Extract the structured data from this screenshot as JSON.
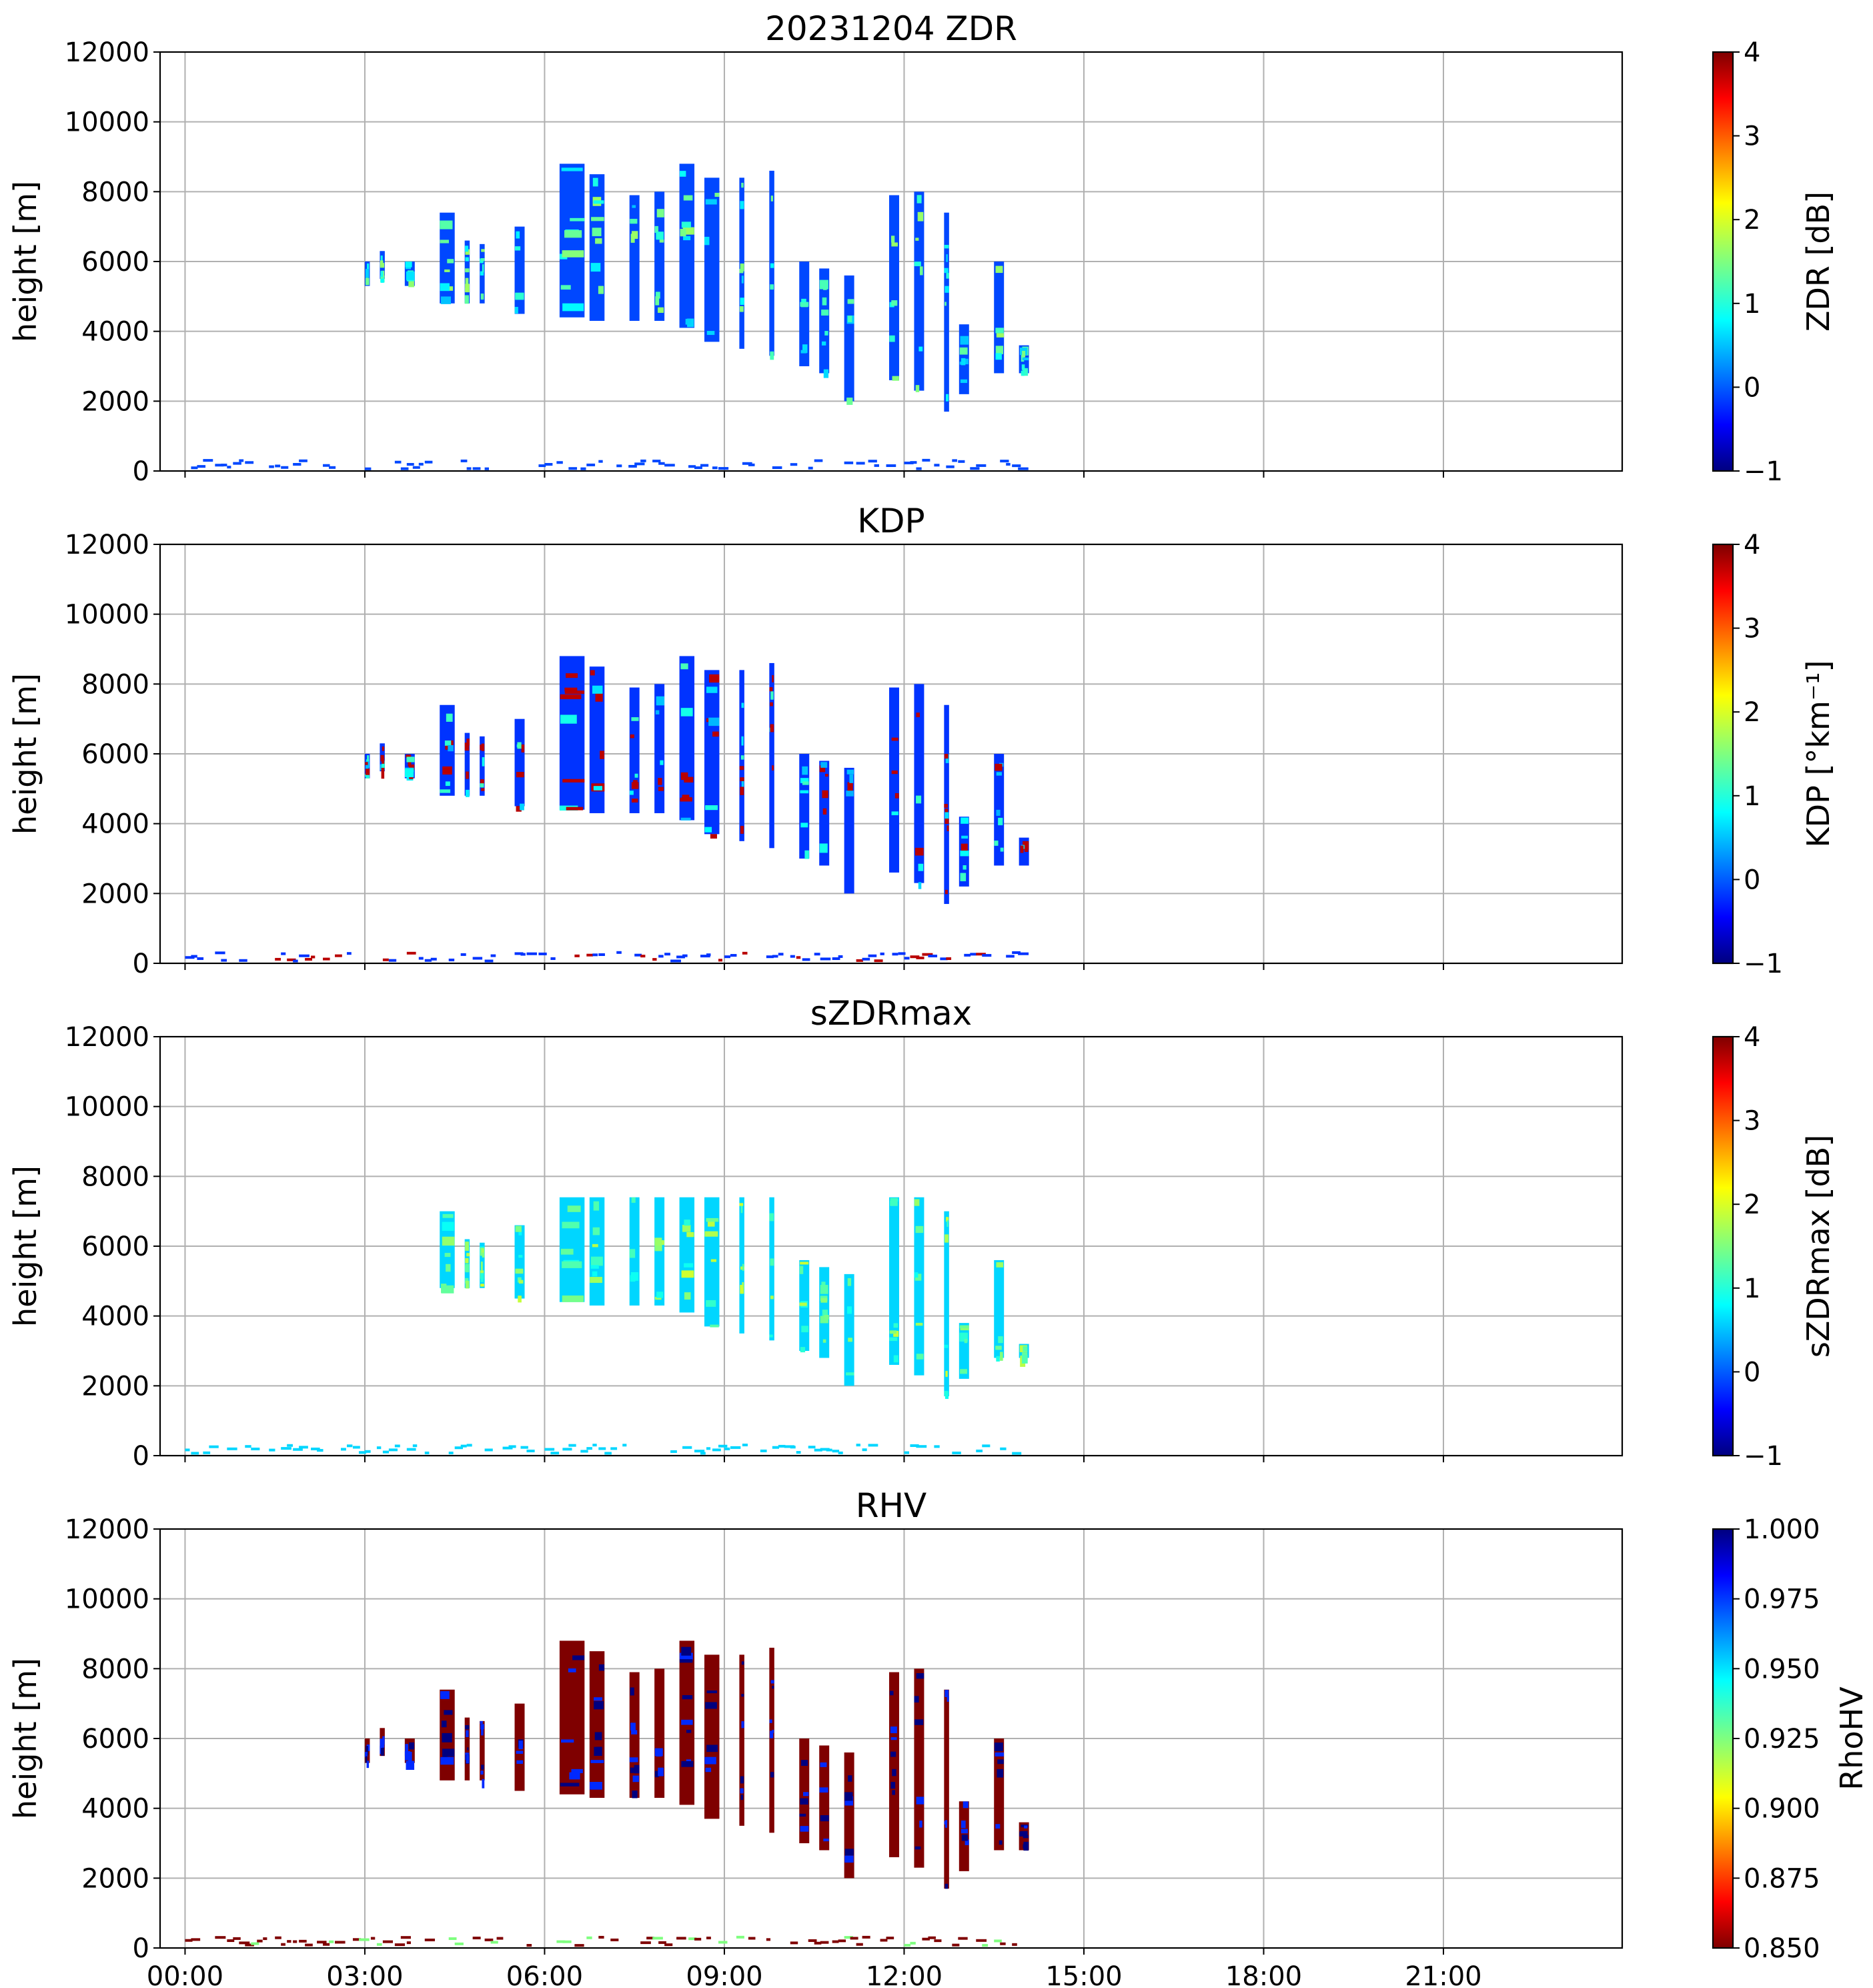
{
  "colors": {
    "jet": [
      "#00007f",
      "#0000ff",
      "#007fff",
      "#00ffff",
      "#7fff7f",
      "#ffff00",
      "#ff7f00",
      "#ff0000",
      "#7f0000"
    ]
  },
  "chart_data": [
    {
      "type": "heatmap",
      "title": "20231204 ZDR",
      "ylabel": "height [m]",
      "ylim": [
        0,
        12000
      ],
      "yticks": [
        "0",
        "2000",
        "4000",
        "6000",
        "8000",
        "10000",
        "12000"
      ],
      "xlim": [
        "2023-12-04 00:00",
        "2023-12-04 23:59"
      ],
      "xticks": [
        "00:00",
        "03:00",
        "06:00",
        "09:00",
        "12:00",
        "15:00",
        "18:00",
        "21:00"
      ],
      "xticklabels_visible": false,
      "colorbar": {
        "label": "ZDR [dB]",
        "min": -1,
        "max": 4,
        "ticks": [
          "−1",
          "0",
          "1",
          "2",
          "3",
          "4"
        ],
        "colormap": "jet"
      },
      "dominant_value": -0.1,
      "grid": true
    },
    {
      "type": "heatmap",
      "title": "KDP",
      "ylabel": "height [m]",
      "ylim": [
        0,
        12000
      ],
      "yticks": [
        "0",
        "2000",
        "4000",
        "6000",
        "8000",
        "10000",
        "12000"
      ],
      "xticks": [
        "00:00",
        "03:00",
        "06:00",
        "09:00",
        "12:00",
        "15:00",
        "18:00",
        "21:00"
      ],
      "xticklabels_visible": false,
      "colorbar": {
        "label": "KDP [°km⁻¹]",
        "min": -1,
        "max": 4,
        "ticks": [
          "−1",
          "0",
          "1",
          "2",
          "3",
          "4"
        ],
        "colormap": "jet"
      },
      "dominant_value": -0.2,
      "grid": true
    },
    {
      "type": "heatmap",
      "title": "sZDRmax",
      "ylabel": "height [m]",
      "ylim": [
        0,
        12000
      ],
      "yticks": [
        "0",
        "2000",
        "4000",
        "6000",
        "8000",
        "10000",
        "12000"
      ],
      "xticks": [
        "00:00",
        "03:00",
        "06:00",
        "09:00",
        "12:00",
        "15:00",
        "18:00",
        "21:00"
      ],
      "xticklabels_visible": false,
      "colorbar": {
        "label": "sZDRmax [dB]",
        "min": -1,
        "max": 4,
        "ticks": [
          "−1",
          "0",
          "1",
          "2",
          "3",
          "4"
        ],
        "colormap": "jet"
      },
      "dominant_value": 0.6,
      "grid": true
    },
    {
      "type": "heatmap",
      "title": "RHV",
      "ylabel": "height [m]",
      "ylim": [
        0,
        12000
      ],
      "yticks": [
        "0",
        "2000",
        "4000",
        "6000",
        "8000",
        "10000",
        "12000"
      ],
      "xticks": [
        "00:00",
        "03:00",
        "06:00",
        "09:00",
        "12:00",
        "15:00",
        "18:00",
        "21:00"
      ],
      "xticklabels_visible": true,
      "colorbar": {
        "label": "RhoHV",
        "min": 0.85,
        "max": 1.0,
        "ticks": [
          "0.850",
          "0.875",
          "0.900",
          "0.925",
          "0.950",
          "0.975",
          "1.000"
        ],
        "colormap": "jet_r"
      },
      "dominant_value": 0.85,
      "grid": true
    }
  ],
  "radar_columns": [
    {
      "start": "03:00",
      "end": "03:05",
      "bottom": 5300,
      "top": 6000
    },
    {
      "start": "03:15",
      "end": "03:20",
      "bottom": 5500,
      "top": 6300
    },
    {
      "start": "03:40",
      "end": "03:50",
      "bottom": 5300,
      "top": 6000
    },
    {
      "start": "04:15",
      "end": "04:30",
      "bottom": 4800,
      "top": 7400
    },
    {
      "start": "04:40",
      "end": "04:45",
      "bottom": 4800,
      "top": 6600
    },
    {
      "start": "04:55",
      "end": "05:00",
      "bottom": 4800,
      "top": 6500
    },
    {
      "start": "05:30",
      "end": "05:40",
      "bottom": 4500,
      "top": 7000
    },
    {
      "start": "06:15",
      "end": "06:40",
      "bottom": 4400,
      "top": 8800
    },
    {
      "start": "06:45",
      "end": "07:00",
      "bottom": 4300,
      "top": 8500
    },
    {
      "start": "07:25",
      "end": "07:35",
      "bottom": 4300,
      "top": 7900
    },
    {
      "start": "07:50",
      "end": "08:00",
      "bottom": 4300,
      "top": 8000
    },
    {
      "start": "08:15",
      "end": "08:30",
      "bottom": 4100,
      "top": 8800
    },
    {
      "start": "08:40",
      "end": "08:55",
      "bottom": 3700,
      "top": 8400
    },
    {
      "start": "09:15",
      "end": "09:20",
      "bottom": 3500,
      "top": 8400
    },
    {
      "start": "09:45",
      "end": "09:50",
      "bottom": 3300,
      "top": 8600
    },
    {
      "start": "10:15",
      "end": "10:25",
      "bottom": 3000,
      "top": 6000
    },
    {
      "start": "10:35",
      "end": "10:45",
      "bottom": 2800,
      "top": 5800
    },
    {
      "start": "11:00",
      "end": "11:10",
      "bottom": 2000,
      "top": 5600
    },
    {
      "start": "11:45",
      "end": "11:55",
      "bottom": 2600,
      "top": 7900
    },
    {
      "start": "12:10",
      "end": "12:20",
      "bottom": 2300,
      "top": 8000
    },
    {
      "start": "12:40",
      "end": "12:45",
      "bottom": 1700,
      "top": 7400
    },
    {
      "start": "12:55",
      "end": "13:05",
      "bottom": 2200,
      "top": 4200
    },
    {
      "start": "13:30",
      "end": "13:40",
      "bottom": 2800,
      "top": 6000
    },
    {
      "start": "13:55",
      "end": "14:05",
      "bottom": 2800,
      "top": 3600
    }
  ]
}
